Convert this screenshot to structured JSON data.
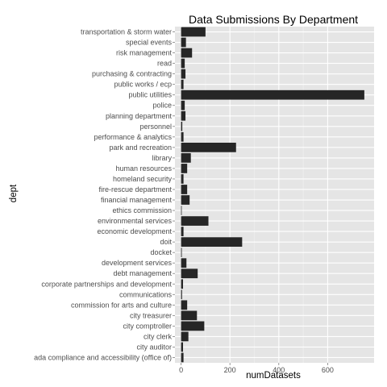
{
  "chart_data": {
    "type": "bar",
    "orientation": "horizontal",
    "title": "Data Submissions By Department",
    "xlabel": "numDatasets",
    "ylabel": "dept",
    "xlim": [
      -25,
      790
    ],
    "x_ticks": [
      0,
      200,
      400,
      600
    ],
    "grid": true,
    "legend": "none",
    "colors": {
      "panel": "#e5e5e5",
      "grid_major": "#ffffff",
      "grid_minor": "#f2f2f2",
      "bar": "#262626"
    },
    "categories": [
      "transportation & storm water",
      "special events",
      "risk management",
      "read",
      "purchasing & contracting",
      "public works / ecp",
      "public utilities",
      "police",
      "planning department",
      "personnel",
      "performance & analytics",
      "park and recreation",
      "library",
      "human resources",
      "homeland security",
      "fire-rescue department",
      "financial management",
      "ethics commission",
      "environmental services",
      "economic development",
      "doit",
      "docket",
      "development services",
      "debt management",
      "corporate partnerships and development",
      "communications",
      "commission for arts and culture",
      "city treasurer",
      "city comptroller",
      "city clerk",
      "city auditor",
      "ada compliance and accessibility (office of)"
    ],
    "values": [
      100,
      20,
      45,
      15,
      18,
      10,
      750,
      15,
      18,
      5,
      10,
      225,
      40,
      25,
      10,
      25,
      35,
      2,
      112,
      10,
      250,
      3,
      22,
      68,
      8,
      4,
      25,
      65,
      95,
      30,
      8,
      10
    ]
  }
}
